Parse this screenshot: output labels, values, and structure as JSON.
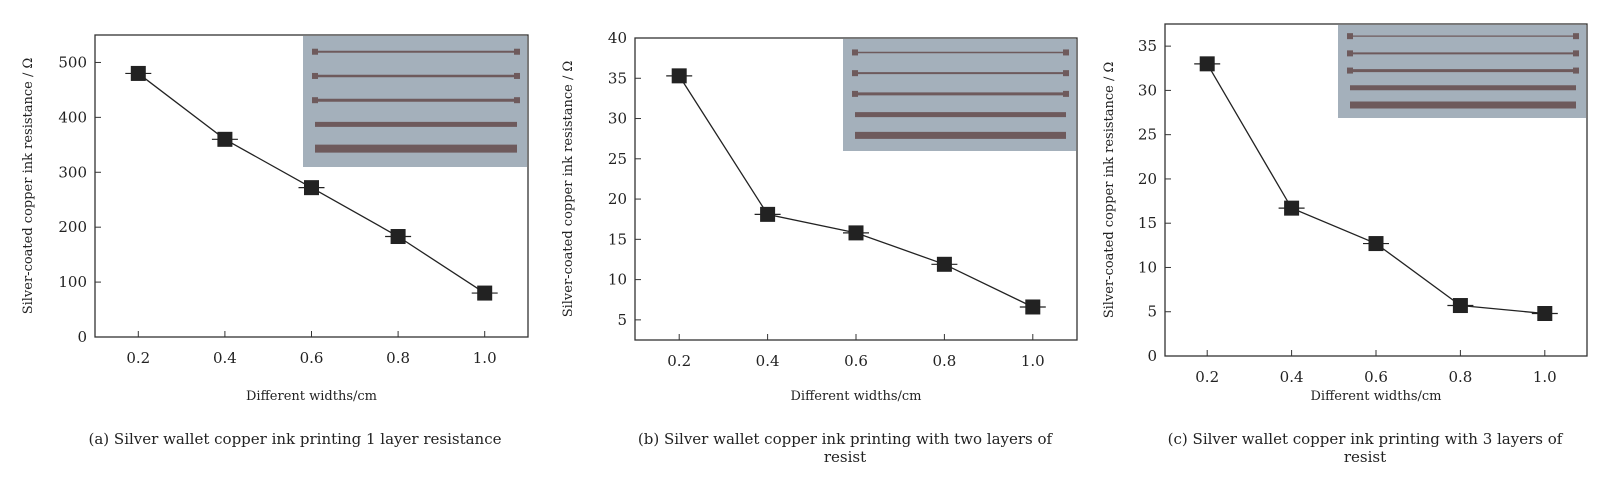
{
  "colors": {
    "marker": "#222222",
    "line": "#222222",
    "inset_bg": "#a4b0bb",
    "inset_trace": "#6e5a5c"
  },
  "chart_data": [
    {
      "type": "line",
      "caption": "(a) Silver wallet copper ink printing 1 layer resistance",
      "xlabel": "Different widths/cm",
      "ylabel": "Silver-coated copper ink resistance / Ω",
      "x": [
        0.2,
        0.4,
        0.6,
        0.8,
        1.0
      ],
      "x_tick_labels": [
        "0.2",
        "0.4",
        "0.6",
        "0.8",
        "1.0"
      ],
      "y": [
        480,
        360,
        272,
        183,
        80
      ],
      "y_ticks": [
        0,
        100,
        200,
        300,
        400,
        500
      ],
      "xlim": [
        0.1,
        1.1
      ],
      "ylim": [
        0,
        550
      ],
      "marker": "square",
      "grid": false,
      "inset": "photo of 5 printed copper traces of increasing width"
    },
    {
      "type": "line",
      "caption": "(b) Silver wallet copper ink printing with two layers of resist",
      "xlabel": "Different widths/cm",
      "ylabel": "Silver-coated copper ink resistance / Ω",
      "x": [
        0.2,
        0.4,
        0.6,
        0.8,
        1.0
      ],
      "x_tick_labels": [
        "0.2",
        "0.4",
        "0.6",
        "0.8",
        "1.0"
      ],
      "y": [
        35.3,
        18.1,
        15.8,
        11.9,
        6.6
      ],
      "y_ticks": [
        5,
        10,
        15,
        20,
        25,
        30,
        35,
        40
      ],
      "xlim": [
        0.1,
        1.1
      ],
      "ylim": [
        2.5,
        40
      ],
      "marker": "square",
      "grid": false,
      "inset": "photo of 5 printed copper traces of increasing width"
    },
    {
      "type": "line",
      "caption": "(c) Silver wallet copper ink printing with 3 layers of resist",
      "xlabel": "Different widths/cm",
      "ylabel": "Silver-coated copper ink resistance / Ω",
      "x": [
        0.2,
        0.4,
        0.6,
        0.8,
        1.0
      ],
      "x_tick_labels": [
        "0.2",
        "0.4",
        "0.6",
        "0.8",
        "1.0"
      ],
      "y": [
        33,
        16.7,
        12.7,
        5.7,
        4.8
      ],
      "y_ticks": [
        0,
        5,
        10,
        15,
        20,
        25,
        30,
        35
      ],
      "xlim": [
        0.1,
        1.1
      ],
      "ylim": [
        0,
        37.5
      ],
      "marker": "square",
      "grid": false,
      "inset": "photo of 5 printed copper traces of increasing width"
    }
  ]
}
